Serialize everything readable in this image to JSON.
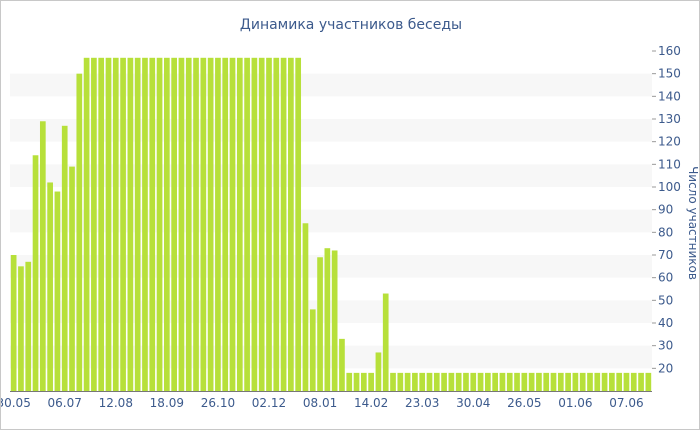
{
  "chart_data": {
    "type": "bar",
    "title": "Динамика участников беседы",
    "xlabel": "",
    "ylabel": "Число участников",
    "ylim": [
      10,
      160
    ],
    "y_ticks": [
      20,
      30,
      40,
      50,
      60,
      70,
      80,
      90,
      100,
      110,
      120,
      130,
      140,
      150,
      160
    ],
    "x_tick_labels": [
      "30.05",
      "06.07",
      "12.08",
      "18.09",
      "26.10",
      "02.12",
      "08.01",
      "14.02",
      "23.03",
      "30.04",
      "26.05",
      "01.06",
      "07.06"
    ],
    "x_tick_indices": [
      0,
      7,
      14,
      21,
      28,
      35,
      42,
      49,
      56,
      63,
      70,
      77,
      84
    ],
    "values": [
      70,
      65,
      67,
      114,
      129,
      102,
      98,
      127,
      109,
      150,
      157,
      157,
      157,
      157,
      157,
      157,
      157,
      157,
      157,
      157,
      157,
      157,
      157,
      157,
      157,
      157,
      157,
      157,
      157,
      157,
      157,
      157,
      157,
      157,
      157,
      157,
      157,
      157,
      157,
      157,
      84,
      46,
      69,
      73,
      72,
      33,
      18,
      18,
      18,
      18,
      27,
      53,
      18,
      18,
      18,
      18,
      18,
      18,
      18,
      18,
      18,
      18,
      18,
      18,
      18,
      18,
      18,
      18,
      18,
      18,
      18,
      18,
      18,
      18,
      18,
      18,
      18,
      18,
      18,
      18,
      18,
      18,
      18,
      18,
      18,
      18,
      18,
      18
    ],
    "bar_color": "#b7e03a",
    "band_color": "#f7f7f7",
    "text_color": "#3c5a8c",
    "grid": true
  }
}
